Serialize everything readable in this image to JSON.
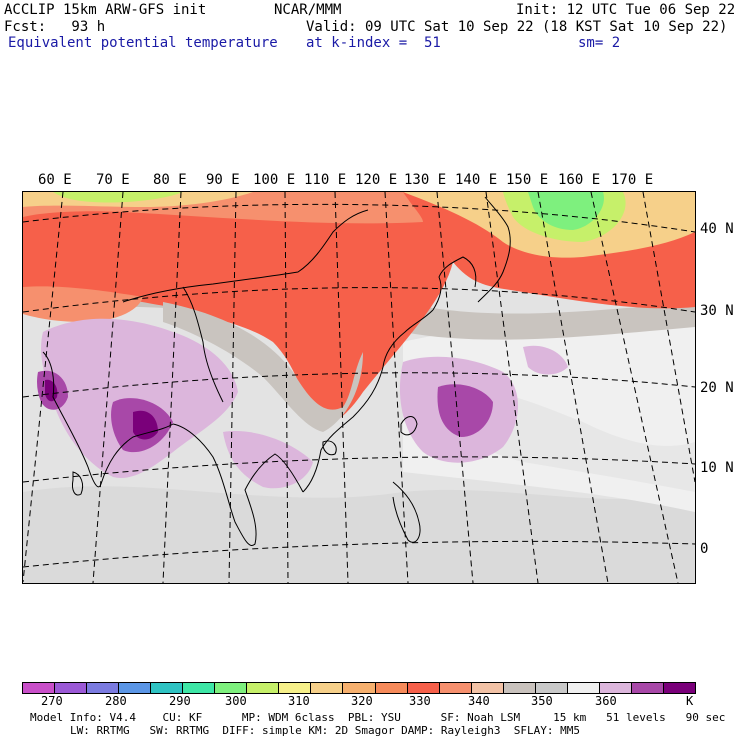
{
  "header": {
    "model_title": "ACCLIP 15km ARW-GFS init",
    "center": "NCAR/MMM",
    "init": "Init: 12 UTC Tue 06 Sep 22",
    "fcst": "Fcst:   93 h",
    "valid": "Valid: 09 UTC Sat 10 Sep 22 (18 KST Sat 10 Sep 22)",
    "field": "Equivalent potential temperature",
    "level": "at k-index =  51",
    "smoothing": "sm= 2"
  },
  "map": {
    "lon_labels": [
      "60 E",
      "70 E",
      "80 E",
      "90 E",
      "100 E",
      "110 E",
      "120 E",
      "130 E",
      "140 E",
      "150 E",
      "160 E",
      "170 E"
    ],
    "lat_labels": [
      "40 N",
      "30 N",
      "20 N",
      "10 N",
      "0"
    ]
  },
  "colorbar": {
    "colors": [
      "#c94fc9",
      "#9b59d6",
      "#7b7be0",
      "#5b96e6",
      "#2fc3c3",
      "#3ee6a6",
      "#7ef07e",
      "#c6f06a",
      "#f6f08a",
      "#f6d08a",
      "#f6b06e",
      "#f68a5a",
      "#f6604a",
      "#f6906e",
      "#f2c2a6",
      "#c9c2bd",
      "#c9c9c9",
      "#f0f0f0",
      "#dcb6dc",
      "#a848a8",
      "#7a007a"
    ],
    "labels": [
      "270",
      "280",
      "290",
      "300",
      "310",
      "320",
      "330",
      "340",
      "350",
      "360"
    ],
    "unit": "K"
  },
  "footer": {
    "line1": "Model Info: V4.4    CU: KF      MP: WDM 6class  PBL: YSU      SF: Noah LSM     15 km   51 levels   90 sec",
    "line2": "LW: RRTMG   SW: RRTMG  DIFF: simple KM: 2D Smagor DAMP: Rayleigh3  SFLAY: MM5"
  }
}
